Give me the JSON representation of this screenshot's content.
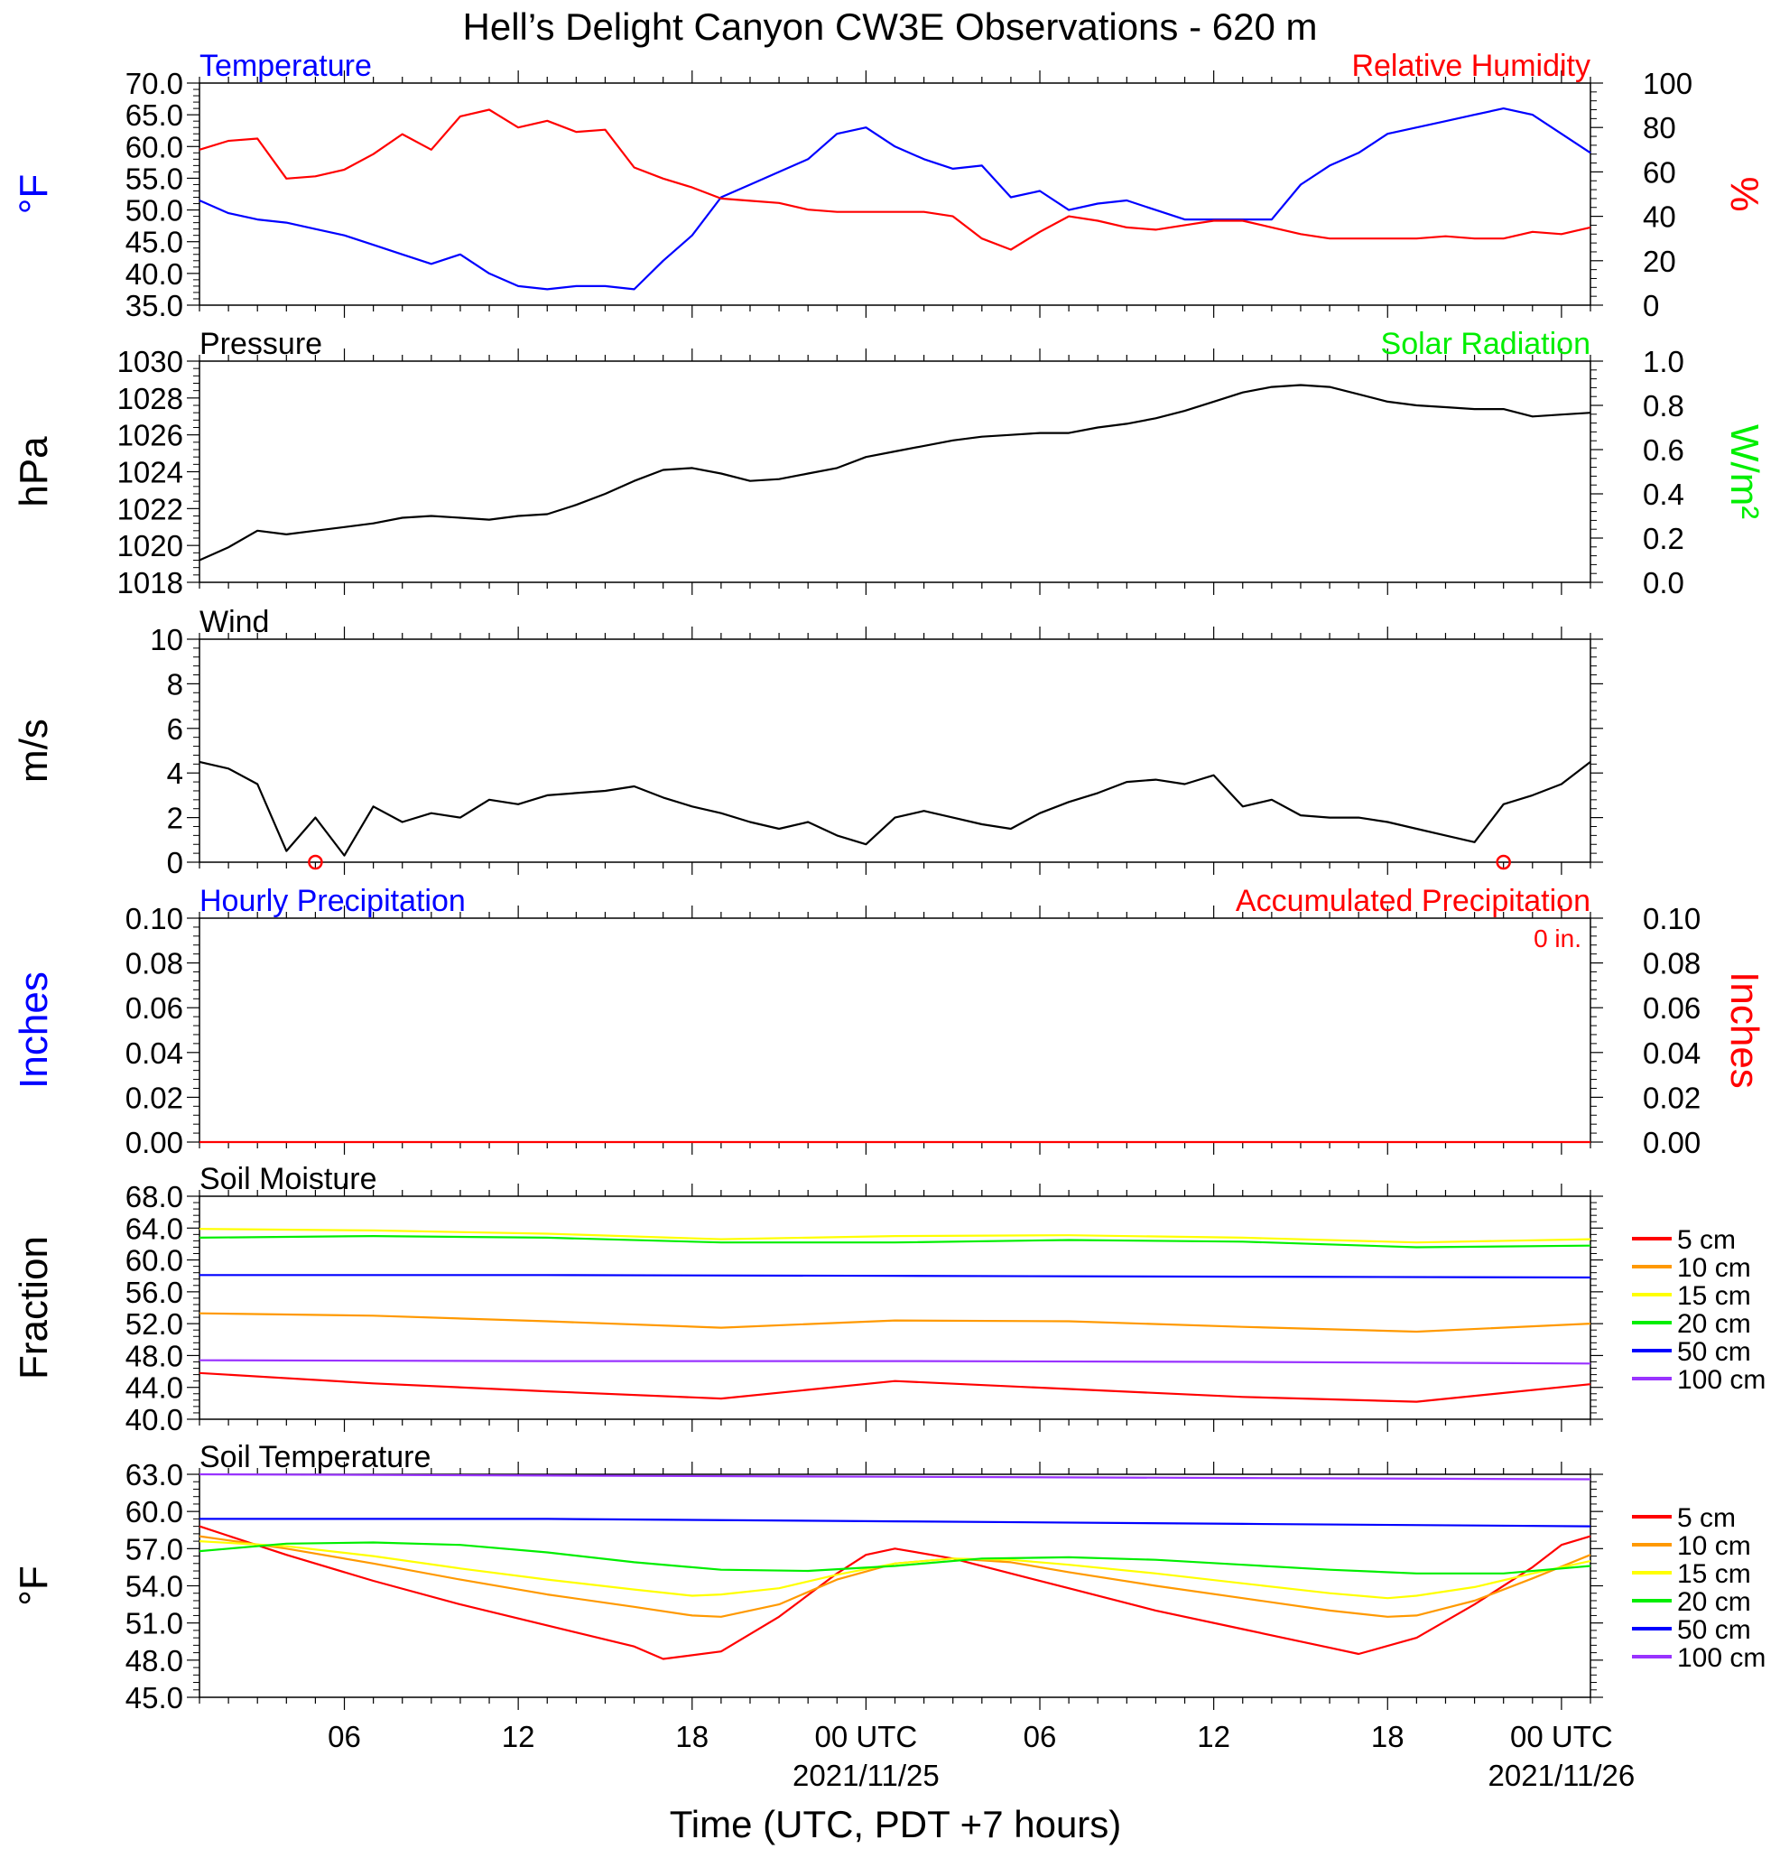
{
  "title": "Hell’s Delight Canyon CW3E Observations - 620 m",
  "x_axis": {
    "label": "Time (UTC, PDT +7 hours)",
    "range_hours": [
      0,
      48
    ],
    "tick_labels": [
      {
        "hour": 5,
        "text": "06"
      },
      {
        "hour": 11,
        "text": "12"
      },
      {
        "hour": 17,
        "text": "18"
      },
      {
        "hour": 23,
        "text": "00 UTC",
        "date": "2021/11/25"
      },
      {
        "hour": 29,
        "text": "06"
      },
      {
        "hour": 35,
        "text": "12"
      },
      {
        "hour": 41,
        "text": "18"
      },
      {
        "hour": 47,
        "text": "00 UTC",
        "date": "2021/11/26"
      }
    ]
  },
  "colors": {
    "blue": "#0000ff",
    "red": "#ff0000",
    "green": "#00ee00",
    "orange": "#ff9900",
    "yellow": "#ffff00",
    "purple": "#9933ff",
    "black": "#000000"
  },
  "chart_data": [
    {
      "type": "line",
      "panel": "temperature_rh",
      "left_title": "Temperature",
      "right_title": "Relative Humidity",
      "ylabel_left": "°F",
      "ylabel_right": "%",
      "ylim_left": [
        35,
        70
      ],
      "ylim_right": [
        0,
        100
      ],
      "yticks_left": [
        "35.0",
        "40.0",
        "45.0",
        "50.0",
        "55.0",
        "60.0",
        "65.0",
        "70.0"
      ],
      "yticks_right": [
        "0",
        "20",
        "40",
        "60",
        "80",
        "100"
      ],
      "series": [
        {
          "axis": "left",
          "color": "blue",
          "x": [
            0,
            1,
            2,
            3,
            4,
            5,
            6,
            7,
            8,
            9,
            10,
            11,
            12,
            13,
            14,
            15,
            16,
            17,
            18,
            19,
            20,
            21,
            22,
            23,
            24,
            25,
            26,
            27,
            28,
            29,
            30,
            31,
            32,
            33,
            34,
            35,
            36,
            37,
            38,
            39,
            40,
            41,
            42,
            43,
            44,
            45,
            46,
            47,
            48
          ],
          "values": [
            51.5,
            49.5,
            48.5,
            48,
            47,
            46,
            44.5,
            43,
            41.5,
            43,
            40,
            38,
            37.5,
            38,
            38,
            37.5,
            42,
            46,
            52,
            54,
            56,
            58,
            62,
            63,
            60,
            58,
            56.5,
            57,
            52,
            53,
            50,
            51,
            51.5,
            50,
            48.5,
            48.5,
            48.5,
            48.5,
            54,
            57,
            59,
            62,
            63,
            64,
            65,
            66,
            65,
            62,
            59
          ]
        },
        {
          "axis": "right",
          "color": "red",
          "x": [
            0,
            1,
            2,
            3,
            4,
            5,
            6,
            7,
            8,
            9,
            10,
            11,
            12,
            13,
            14,
            15,
            16,
            17,
            18,
            19,
            20,
            21,
            22,
            23,
            24,
            25,
            26,
            27,
            28,
            29,
            30,
            31,
            32,
            33,
            34,
            35,
            36,
            37,
            38,
            39,
            40,
            41,
            42,
            43,
            44,
            45,
            46,
            47,
            48
          ],
          "values": [
            70,
            74,
            75,
            57,
            58,
            61,
            68,
            77,
            70,
            85,
            88,
            80,
            83,
            78,
            79,
            62,
            57,
            53,
            48,
            47,
            46,
            43,
            42,
            42,
            42,
            42,
            40,
            30,
            25,
            33,
            40,
            38,
            35,
            34,
            36,
            38,
            38,
            35,
            32,
            30,
            30,
            30,
            30,
            31,
            30,
            30,
            33,
            32,
            35
          ]
        }
      ]
    },
    {
      "type": "line",
      "panel": "pressure_solar",
      "left_title": "Pressure",
      "right_title": "Solar Radiation",
      "ylabel_left": "hPa",
      "ylabel_right": "W/m²",
      "ylim_left": [
        1018,
        1030
      ],
      "ylim_right": [
        0,
        1
      ],
      "yticks_left": [
        "1018",
        "1020",
        "1022",
        "1024",
        "1026",
        "1028",
        "1030"
      ],
      "yticks_right": [
        "0.0",
        "0.2",
        "0.4",
        "0.6",
        "0.8",
        "1.0"
      ],
      "series": [
        {
          "axis": "left",
          "color": "black",
          "x": [
            0,
            1,
            2,
            3,
            4,
            5,
            6,
            7,
            8,
            9,
            10,
            11,
            12,
            13,
            14,
            15,
            16,
            17,
            18,
            19,
            20,
            21,
            22,
            23,
            24,
            25,
            26,
            27,
            28,
            29,
            30,
            31,
            32,
            33,
            34,
            35,
            36,
            37,
            38,
            39,
            40,
            41,
            42,
            43,
            44,
            45,
            46,
            47,
            48
          ],
          "values": [
            1019.2,
            1019.9,
            1020.8,
            1020.6,
            1020.8,
            1021.0,
            1021.2,
            1021.5,
            1021.6,
            1021.5,
            1021.4,
            1021.6,
            1021.7,
            1022.2,
            1022.8,
            1023.5,
            1024.1,
            1024.2,
            1023.9,
            1023.5,
            1023.6,
            1023.9,
            1024.2,
            1024.8,
            1025.1,
            1025.4,
            1025.7,
            1025.9,
            1026.0,
            1026.1,
            1026.1,
            1026.4,
            1026.6,
            1026.9,
            1027.3,
            1027.8,
            1028.3,
            1028.6,
            1028.7,
            1028.6,
            1028.2,
            1027.8,
            1027.6,
            1027.5,
            1027.4,
            1027.4,
            1027.0,
            1027.1,
            1027.2
          ]
        }
      ]
    },
    {
      "type": "line",
      "panel": "wind",
      "left_title": "Wind",
      "ylabel_left": "m/s",
      "ylim_left": [
        0,
        10
      ],
      "yticks_left": [
        "0",
        "2",
        "4",
        "6",
        "8",
        "10"
      ],
      "series": [
        {
          "axis": "left",
          "color": "black",
          "x": [
            0,
            1,
            2,
            3,
            4,
            5,
            6,
            7,
            8,
            9,
            10,
            11,
            12,
            13,
            14,
            15,
            16,
            17,
            18,
            19,
            20,
            21,
            22,
            23,
            24,
            25,
            26,
            27,
            28,
            29,
            30,
            31,
            32,
            33,
            34,
            35,
            36,
            37,
            38,
            39,
            40,
            41,
            42,
            43,
            44,
            45,
            46,
            47,
            48
          ],
          "values": [
            4.5,
            4.2,
            3.5,
            0.5,
            2.0,
            0.3,
            2.5,
            1.8,
            2.2,
            2.0,
            2.8,
            2.6,
            3.0,
            3.1,
            3.2,
            3.4,
            2.9,
            2.5,
            2.2,
            1.8,
            1.5,
            1.8,
            1.2,
            0.8,
            2.0,
            2.3,
            2.0,
            1.7,
            1.5,
            2.2,
            2.7,
            3.1,
            3.6,
            3.7,
            3.5,
            3.9,
            2.5,
            2.8,
            2.1,
            2.0,
            2.0,
            1.8,
            1.5,
            1.2,
            0.9,
            2.6,
            3.0,
            3.5,
            4.5
          ]
        }
      ],
      "calm_markers_hours": [
        4.0,
        45.0
      ]
    },
    {
      "type": "line",
      "panel": "precipitation",
      "left_title": "Hourly Precipitation",
      "right_title": "Accumulated Precipitation",
      "annotation": "0 in.",
      "ylabel_left": "Inches",
      "ylabel_right": "Inches",
      "ylim_left": [
        0,
        0.1
      ],
      "ylim_right": [
        0,
        0.1
      ],
      "yticks_left": [
        "0.00",
        "0.02",
        "0.04",
        "0.06",
        "0.08",
        "0.10"
      ],
      "yticks_right": [
        "0.00",
        "0.02",
        "0.04",
        "0.06",
        "0.08",
        "0.10"
      ],
      "series": [
        {
          "axis": "left",
          "color": "red",
          "x": [
            0,
            48
          ],
          "values": [
            0,
            0
          ]
        }
      ]
    },
    {
      "type": "line",
      "panel": "soil_moisture",
      "left_title": "Soil Moisture",
      "ylabel_left": "Fraction",
      "ylim_left": [
        40,
        68
      ],
      "yticks_left": [
        "40.0",
        "44.0",
        "48.0",
        "52.0",
        "56.0",
        "60.0",
        "64.0",
        "68.0"
      ],
      "legend": [
        "5 cm",
        "10 cm",
        "15 cm",
        "20 cm",
        "50 cm",
        "100 cm"
      ],
      "series": [
        {
          "name": "5 cm",
          "color": "red",
          "x": [
            0,
            6,
            12,
            18,
            24,
            30,
            36,
            42,
            48
          ],
          "values": [
            45.8,
            44.5,
            43.5,
            42.6,
            44.8,
            43.8,
            42.8,
            42.2,
            44.4
          ]
        },
        {
          "name": "10 cm",
          "color": "orange",
          "x": [
            0,
            6,
            12,
            18,
            24,
            30,
            36,
            42,
            48
          ],
          "values": [
            53.3,
            53.0,
            52.3,
            51.5,
            52.4,
            52.3,
            51.6,
            51.0,
            52.0
          ]
        },
        {
          "name": "15 cm",
          "color": "yellow",
          "x": [
            0,
            6,
            12,
            18,
            24,
            30,
            36,
            42,
            48
          ],
          "values": [
            63.9,
            63.7,
            63.3,
            62.6,
            63.0,
            63.1,
            62.8,
            62.2,
            62.6
          ]
        },
        {
          "name": "20 cm",
          "color": "green",
          "x": [
            0,
            6,
            12,
            18,
            24,
            30,
            36,
            42,
            48
          ],
          "values": [
            62.8,
            63.0,
            62.8,
            62.2,
            62.2,
            62.5,
            62.3,
            61.6,
            61.8
          ]
        },
        {
          "name": "50 cm",
          "color": "blue",
          "x": [
            0,
            12,
            24,
            36,
            48
          ],
          "values": [
            58.1,
            58.1,
            58.0,
            57.9,
            57.8
          ]
        },
        {
          "name": "100 cm",
          "color": "purple",
          "x": [
            0,
            12,
            24,
            36,
            48
          ],
          "values": [
            47.4,
            47.3,
            47.3,
            47.2,
            47.0
          ]
        }
      ]
    },
    {
      "type": "line",
      "panel": "soil_temperature",
      "left_title": "Soil Temperature",
      "ylabel_left": "°F",
      "ylim_left": [
        45,
        63
      ],
      "yticks_left": [
        "45.0",
        "48.0",
        "51.0",
        "54.0",
        "57.0",
        "60.0",
        "63.0"
      ],
      "legend": [
        "5 cm",
        "10 cm",
        "15 cm",
        "20 cm",
        "50 cm",
        "100 cm"
      ],
      "series": [
        {
          "name": "5 cm",
          "color": "red",
          "x": [
            0,
            3,
            6,
            9,
            12,
            15,
            16,
            18,
            20,
            22,
            23,
            24,
            26,
            28,
            30,
            33,
            36,
            39,
            40,
            42,
            44,
            46,
            47,
            48
          ],
          "values": [
            58.8,
            56.5,
            54.4,
            52.5,
            50.8,
            49.1,
            48.1,
            48.7,
            51.5,
            55.0,
            56.5,
            57.0,
            56.2,
            55.0,
            53.8,
            52.0,
            50.5,
            49.0,
            48.5,
            49.8,
            52.5,
            55.5,
            57.3,
            58.0
          ]
        },
        {
          "name": "10 cm",
          "color": "orange",
          "x": [
            0,
            3,
            6,
            9,
            12,
            15,
            17,
            18,
            20,
            22,
            24,
            26,
            28,
            30,
            33,
            36,
            39,
            41,
            42,
            44,
            46,
            48
          ],
          "values": [
            58.0,
            57.0,
            55.8,
            54.5,
            53.3,
            52.3,
            51.6,
            51.5,
            52.5,
            54.5,
            55.8,
            56.2,
            55.9,
            55.1,
            54.0,
            53.0,
            52.0,
            51.5,
            51.6,
            52.8,
            54.6,
            56.5
          ]
        },
        {
          "name": "15 cm",
          "color": "yellow",
          "x": [
            0,
            3,
            6,
            9,
            12,
            15,
            17,
            18,
            20,
            22,
            24,
            26,
            28,
            30,
            33,
            36,
            39,
            41,
            42,
            44,
            46,
            48
          ],
          "values": [
            57.6,
            57.2,
            56.4,
            55.4,
            54.5,
            53.7,
            53.2,
            53.3,
            53.8,
            54.9,
            55.8,
            56.2,
            56.1,
            55.7,
            55.0,
            54.2,
            53.4,
            53.0,
            53.2,
            53.9,
            55.0,
            56.0
          ]
        },
        {
          "name": "20 cm",
          "color": "green",
          "x": [
            0,
            3,
            6,
            9,
            12,
            15,
            18,
            21,
            24,
            27,
            30,
            33,
            36,
            39,
            42,
            45,
            48
          ],
          "values": [
            56.8,
            57.4,
            57.5,
            57.3,
            56.7,
            55.9,
            55.3,
            55.2,
            55.6,
            56.2,
            56.3,
            56.1,
            55.7,
            55.3,
            55.0,
            55.0,
            55.6
          ]
        },
        {
          "name": "50 cm",
          "color": "blue",
          "x": [
            0,
            12,
            24,
            36,
            48
          ],
          "values": [
            59.4,
            59.4,
            59.2,
            59.0,
            58.8
          ]
        },
        {
          "name": "100 cm",
          "color": "purple",
          "x": [
            0,
            12,
            24,
            36,
            48
          ],
          "values": [
            63.0,
            62.9,
            62.8,
            62.7,
            62.6
          ]
        }
      ]
    }
  ]
}
